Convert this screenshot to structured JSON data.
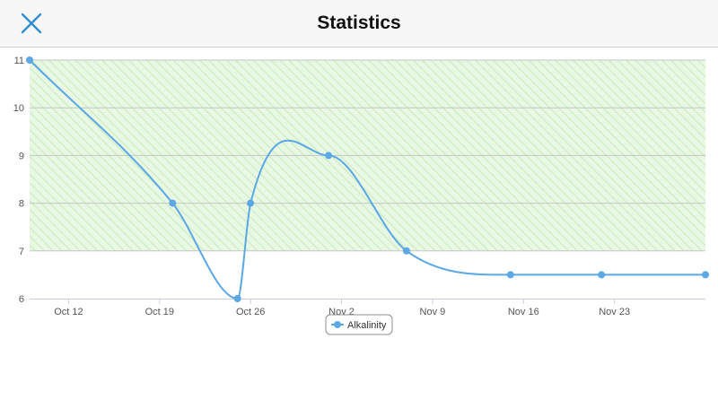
{
  "header": {
    "title": "Statistics",
    "close_icon": "close-icon"
  },
  "colors": {
    "accent": "#2f8fd0",
    "series": "#5aa8e6",
    "band_fill": "#e9f8e4",
    "band_stripe": "#c8ecbc",
    "grid": "#c6c6c6",
    "axis": "#c8cce6"
  },
  "chart_data": {
    "type": "line",
    "title": "",
    "xlabel": "",
    "ylabel": "",
    "x_axis_type": "date",
    "xlim": [
      "2023-10-09",
      "2023-11-30"
    ],
    "ylim": [
      6,
      11
    ],
    "y_ticks": [
      "6",
      "7",
      "8",
      "9",
      "10",
      "11"
    ],
    "x_ticks": [
      {
        "date": "2023-10-12",
        "label": "Oct 12"
      },
      {
        "date": "2023-10-19",
        "label": "Oct 19"
      },
      {
        "date": "2023-10-26",
        "label": "Oct 26"
      },
      {
        "date": "2023-11-02",
        "label": "Nov 2"
      },
      {
        "date": "2023-11-09",
        "label": "Nov 9"
      },
      {
        "date": "2023-11-16",
        "label": "Nov 16"
      },
      {
        "date": "2023-11-23",
        "label": "Nov 23"
      }
    ],
    "band": {
      "from": 7,
      "to": 11,
      "style": "hatched green"
    },
    "grid": true,
    "legend_position": "bottom-center",
    "series": [
      {
        "name": "Alkalinity",
        "color": "#5aa8e6",
        "x": [
          "2023-10-09",
          "2023-10-20",
          "2023-10-25",
          "2023-10-26",
          "2023-11-01",
          "2023-11-07",
          "2023-11-15",
          "2023-11-22",
          "2023-11-30"
        ],
        "y": [
          11,
          8,
          6,
          8,
          9,
          7,
          6.5,
          6.5,
          6.5
        ]
      }
    ]
  }
}
